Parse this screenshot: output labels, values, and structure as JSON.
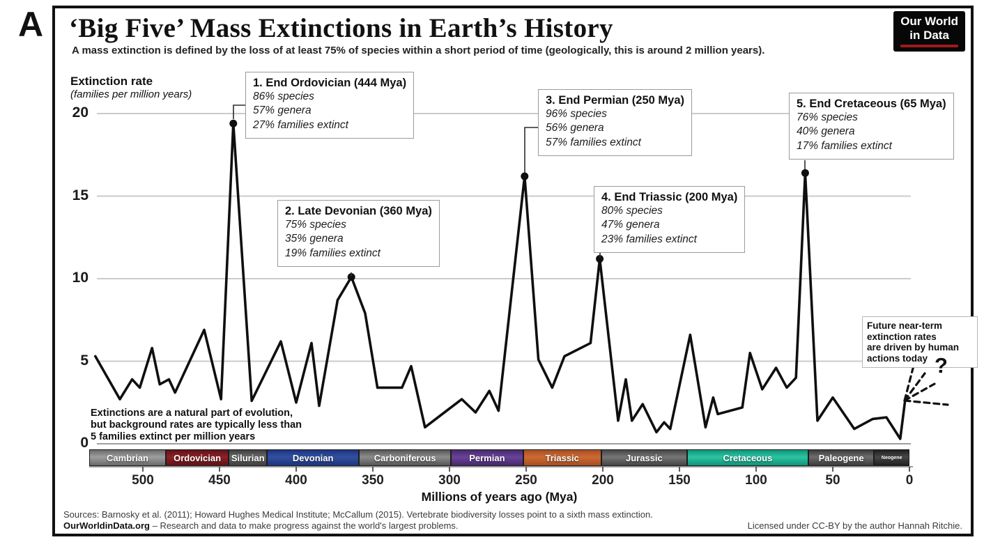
{
  "panel_label": "A",
  "header": {
    "title": "‘Big Five’ Mass Extinctions in Earth’s History",
    "subtitle": "A mass extinction is defined by the loss of at least 75% of species within a short period of time (geologically, this is around 2 million years).",
    "logo": {
      "line1": "Our World",
      "line2": "in Data",
      "accent_color": "#9c1b1f"
    }
  },
  "y_axis": {
    "label_bold": "Extinction rate",
    "label_italic": "(families per million years)",
    "ticks": [
      0,
      5,
      10,
      15,
      20
    ]
  },
  "x_axis": {
    "label": "Millions of years ago (Mya)",
    "ticks": [
      500,
      450,
      400,
      350,
      300,
      250,
      200,
      150,
      100,
      50,
      0
    ]
  },
  "extinction_boxes": [
    {
      "title": "1. End Ordovician (444 Mya)",
      "lines": [
        "86% species",
        "57% genera",
        "27% families extinct"
      ]
    },
    {
      "title": "2. Late Devonian (360 Mya)",
      "lines": [
        "75% species",
        "35% genera",
        "19% families extinct"
      ]
    },
    {
      "title": "3. End Permian (250 Mya)",
      "lines": [
        "96% species",
        "56% genera",
        "57% families extinct"
      ]
    },
    {
      "title": "4. End Triassic (200 Mya)",
      "lines": [
        "80% species",
        "47% genera",
        "23% families extinct"
      ]
    },
    {
      "title": "5. End Cretaceous (65 Mya)",
      "lines": [
        "76% species",
        "40% genera",
        "17% families extinct"
      ]
    }
  ],
  "annotations": {
    "background_note": [
      "Extinctions are a natural part of evolution,",
      "but background rates are typically less than",
      "5 families extinct per million years"
    ],
    "future_note": [
      "Future near-term",
      "extinction rates",
      "are driven by human",
      "actions today"
    ],
    "future_question_mark": "?"
  },
  "chart_data": {
    "type": "line",
    "title": "‘Big Five’ Mass Extinctions in Earth’s History",
    "xlabel": "Millions of years ago (Mya)",
    "ylabel": "Extinction rate (families per million years)",
    "x_axis_reversed": true,
    "xlim": [
      535,
      0
    ],
    "ylim": [
      0,
      21
    ],
    "x_ticks": [
      500,
      450,
      400,
      350,
      300,
      250,
      200,
      150,
      100,
      50,
      0
    ],
    "y_ticks": [
      0,
      5,
      10,
      15,
      20
    ],
    "grid": "horizontal",
    "line_color": "#0f0f0f",
    "series": [
      {
        "name": "Extinction rate (families per million years)",
        "points": [
          [
            531,
            5.3
          ],
          [
            515,
            2.7
          ],
          [
            507,
            3.9
          ],
          [
            502,
            3.4
          ],
          [
            494,
            5.8
          ],
          [
            489,
            3.6
          ],
          [
            483,
            3.9
          ],
          [
            479,
            3.1
          ],
          [
            460,
            6.9
          ],
          [
            449,
            2.7
          ],
          [
            441,
            19.4
          ],
          [
            429,
            2.6
          ],
          [
            410,
            6.2
          ],
          [
            400,
            2.5
          ],
          [
            390,
            6.1
          ],
          [
            385,
            2.3
          ],
          [
            373,
            8.7
          ],
          [
            364,
            10.1
          ],
          [
            355,
            7.9
          ],
          [
            347,
            3.4
          ],
          [
            331,
            3.4
          ],
          [
            325,
            4.7
          ],
          [
            316,
            1.0
          ],
          [
            292,
            2.7
          ],
          [
            283,
            1.9
          ],
          [
            274,
            3.2
          ],
          [
            268,
            2.0
          ],
          [
            251,
            16.2
          ],
          [
            242,
            5.1
          ],
          [
            233,
            3.4
          ],
          [
            225,
            5.3
          ],
          [
            208,
            6.1
          ],
          [
            202,
            11.2
          ],
          [
            190,
            1.4
          ],
          [
            185,
            3.9
          ],
          [
            181,
            1.4
          ],
          [
            174,
            2.4
          ],
          [
            165,
            0.7
          ],
          [
            160,
            1.3
          ],
          [
            156,
            0.9
          ],
          [
            143,
            6.6
          ],
          [
            133,
            1.0
          ],
          [
            128,
            2.8
          ],
          [
            125,
            1.8
          ],
          [
            109,
            2.2
          ],
          [
            104,
            5.5
          ],
          [
            96,
            3.3
          ],
          [
            87,
            4.6
          ],
          [
            80,
            3.4
          ],
          [
            74,
            4.0
          ],
          [
            68,
            16.4
          ],
          [
            60,
            1.4
          ],
          [
            50,
            2.8
          ],
          [
            36,
            0.9
          ],
          [
            24,
            1.5
          ],
          [
            15,
            1.6
          ],
          [
            6,
            0.3
          ],
          [
            3,
            2.5
          ]
        ]
      }
    ],
    "peaks": [
      {
        "name": "End Ordovician",
        "label_mya": 444,
        "mya": 441,
        "rate": 19.4
      },
      {
        "name": "Late Devonian",
        "label_mya": 360,
        "mya": 364,
        "rate": 10.1
      },
      {
        "name": "End Permian",
        "label_mya": 250,
        "mya": 251,
        "rate": 16.2
      },
      {
        "name": "End Triassic",
        "label_mya": 200,
        "mya": 202,
        "rate": 11.2
      },
      {
        "name": "End Cretaceous",
        "label_mya": 65,
        "mya": 68,
        "rate": 16.4
      }
    ]
  },
  "periods": [
    {
      "name": "Cambrian",
      "from": 535,
      "to": 485,
      "edge": "#6a6a6a",
      "center": "#9e9e9e"
    },
    {
      "name": "Ordovician",
      "from": 485,
      "to": 444,
      "edge": "#5f1318",
      "center": "#8f2127"
    },
    {
      "name": "Silurian",
      "from": 444,
      "to": 419,
      "edge": "#3f3f3f",
      "center": "#6b6b6b"
    },
    {
      "name": "Devonian",
      "from": 419,
      "to": 359,
      "edge": "#1d3480",
      "center": "#32509f"
    },
    {
      "name": "Carboniferous",
      "from": 359,
      "to": 299,
      "edge": "#565656",
      "center": "#8c8c8c"
    },
    {
      "name": "Permian",
      "from": 299,
      "to": 252,
      "edge": "#47296f",
      "center": "#6a4397"
    },
    {
      "name": "Triassic",
      "from": 252,
      "to": 201,
      "edge": "#a84e22",
      "center": "#cc6a33"
    },
    {
      "name": "Jurassic",
      "from": 201,
      "to": 145,
      "edge": "#454545",
      "center": "#767676"
    },
    {
      "name": "Cretaceous",
      "from": 145,
      "to": 66,
      "edge": "#0f9479",
      "center": "#2cc4a2"
    },
    {
      "name": "Paleogene",
      "from": 66,
      "to": 23,
      "edge": "#3b3b3b",
      "center": "#6d6d6d"
    },
    {
      "name": "Neogene",
      "from": 23,
      "to": 0,
      "edge": "#1f1f1f",
      "center": "#474747",
      "small": true
    }
  ],
  "footer": {
    "sources": "Sources: Barnosky et al. (2011); Howard Hughes Medical Institute; McCallum (2015). Vertebrate biodiversity losses point to a sixth mass extinction.",
    "brand": "OurWorldinData.org",
    "tagline": " – Research and data to make progress against the world's largest problems.",
    "license": "Licensed under CC-BY by the author Hannah Ritchie."
  }
}
